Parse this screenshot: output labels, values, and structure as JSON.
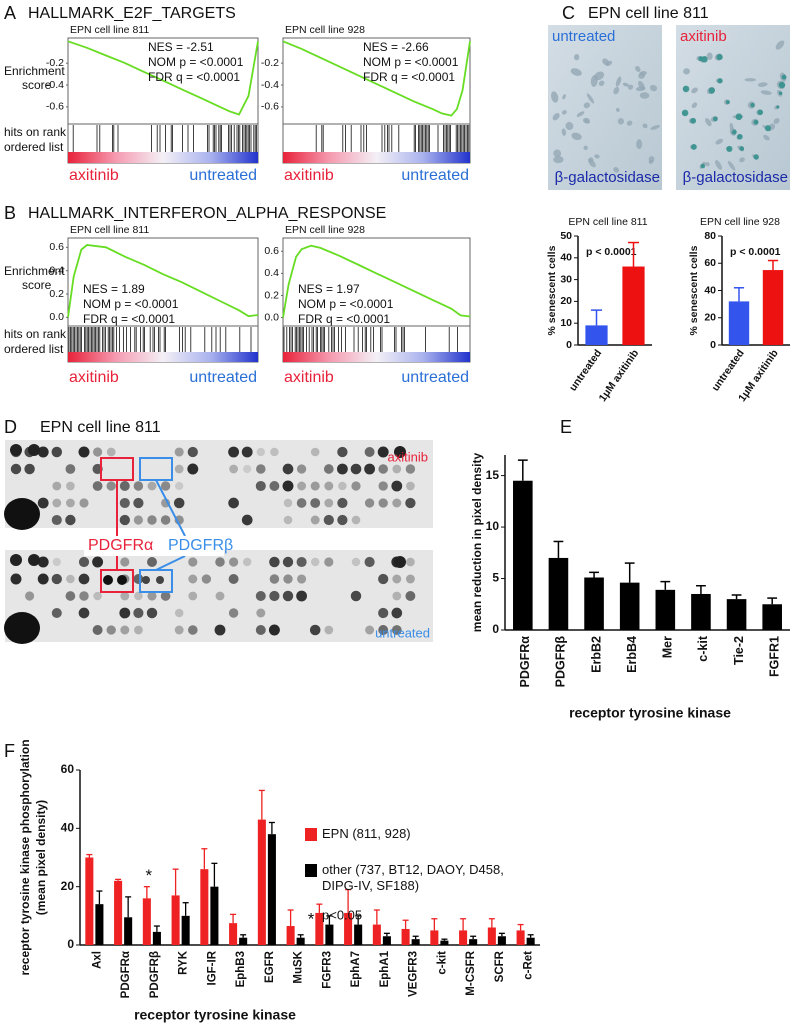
{
  "panel_labels": [
    "A",
    "B",
    "C",
    "D",
    "E",
    "F"
  ],
  "chart_data": [
    {
      "type": "gsea",
      "title": "HALLMARK_E2F_TARGETS",
      "y_label": [
        "Enrichment",
        "score"
      ],
      "hits_label": [
        "hits on rank",
        "ordered list"
      ],
      "left_label": "axitinib",
      "right_label": "untreated",
      "color": "#66dd22",
      "plots": [
        {
          "subtitle": "EPN cell line 811",
          "x": [
            0,
            0.1,
            0.2,
            0.3,
            0.4,
            0.5,
            0.6,
            0.7,
            0.8,
            0.85,
            0.9,
            0.95,
            1.0
          ],
          "values": [
            0,
            -0.06,
            -0.13,
            -0.2,
            -0.28,
            -0.36,
            -0.44,
            -0.52,
            -0.6,
            -0.64,
            -0.67,
            -0.5,
            0
          ],
          "ylim": [
            -0.72,
            0.03
          ],
          "yticks": [
            -0.2,
            -0.4,
            -0.6
          ],
          "annotations": [
            "NES = -2.51",
            "NOM p = <0.0001",
            "FDR q = <0.0001"
          ]
        },
        {
          "subtitle": "EPN cell line 928",
          "x": [
            0,
            0.1,
            0.2,
            0.3,
            0.4,
            0.5,
            0.6,
            0.7,
            0.8,
            0.85,
            0.9,
            0.93,
            0.96,
            1.0
          ],
          "values": [
            0,
            -0.07,
            -0.15,
            -0.23,
            -0.31,
            -0.39,
            -0.47,
            -0.55,
            -0.62,
            -0.66,
            -0.68,
            -0.62,
            -0.45,
            0
          ],
          "ylim": [
            -0.72,
            0.03
          ],
          "yticks": [
            -0.2,
            -0.4,
            -0.6
          ],
          "annotations": [
            "NES = -2.66",
            "NOM p = <0.0001",
            "FDR q = <0.0001"
          ]
        }
      ]
    },
    {
      "type": "gsea",
      "title": "HALLMARK_INTERFERON_ALPHA_RESPONSE",
      "y_label": [
        "Enrichment",
        "score"
      ],
      "hits_label": [
        "hits on rank",
        "ordered list"
      ],
      "left_label": "axitinib",
      "right_label": "untreated",
      "color": "#66dd22",
      "plots": [
        {
          "subtitle": "EPN cell line 811",
          "x": [
            0,
            0.03,
            0.07,
            0.1,
            0.2,
            0.3,
            0.4,
            0.5,
            0.6,
            0.7,
            0.8,
            0.9,
            0.95,
            1.0
          ],
          "values": [
            0,
            0.35,
            0.58,
            0.62,
            0.6,
            0.52,
            0.45,
            0.37,
            0.3,
            0.22,
            0.14,
            0.06,
            0.01,
            0.02
          ],
          "ylim": [
            -0.04,
            0.68
          ],
          "yticks": [
            0.6,
            0.4,
            0.2,
            {
              "value": 0,
              "label": "0.0"
            }
          ],
          "annotations": [
            "NES = 1.89",
            "NOM p = <0.0001",
            "FDR q = <0.0001"
          ]
        },
        {
          "subtitle": "EPN cell line 928",
          "x": [
            0,
            0.03,
            0.07,
            0.1,
            0.15,
            0.2,
            0.3,
            0.4,
            0.5,
            0.6,
            0.7,
            0.8,
            0.9,
            0.95,
            1.0
          ],
          "values": [
            0,
            0.3,
            0.55,
            0.62,
            0.65,
            0.63,
            0.56,
            0.48,
            0.4,
            0.32,
            0.24,
            0.16,
            0.08,
            0.02,
            0.01
          ],
          "ylim": [
            -0.04,
            0.72
          ],
          "yticks": [
            0.6,
            0.4,
            0.2,
            {
              "value": 0,
              "label": "0.0"
            }
          ],
          "annotations": [
            "NES = 1.97",
            "NOM p = <0.0001",
            "FDR q = <0.0001"
          ]
        }
      ]
    },
    {
      "type": "bar",
      "title": "EPN cell line 811",
      "y_label": "% senescent cells",
      "categories": [
        "untreated",
        "1μM axitinib"
      ],
      "values": [
        9,
        36
      ],
      "errors": [
        7,
        11
      ],
      "colors": [
        "#3355ee",
        "#ee1111"
      ],
      "annotation": "p < 0.0001",
      "ylim": [
        0,
        50
      ],
      "yticks": [
        0,
        10,
        20,
        30,
        40,
        50
      ]
    },
    {
      "type": "bar",
      "title": "EPN cell line 928",
      "y_label": "% senescent cells",
      "categories": [
        "untreated",
        "1μM axitinib"
      ],
      "values": [
        32,
        55
      ],
      "errors": [
        10,
        7
      ],
      "colors": [
        "#3355ee",
        "#ee1111"
      ],
      "annotation": "p < 0.0001",
      "ylim": [
        0,
        80
      ],
      "yticks": [
        0,
        20,
        40,
        60,
        80
      ]
    },
    {
      "type": "bar",
      "y_label": "mean reduction in pixel density",
      "x_label": "receptor tyrosine kinase",
      "categories": [
        "PDGFRα",
        "PDGFRβ",
        "ErbB2",
        "ErbB4",
        "Mer",
        "c-kit",
        "Tie-2",
        "FGFR1"
      ],
      "values": [
        14.5,
        7,
        5.1,
        4.6,
        3.9,
        3.5,
        3.0,
        2.5
      ],
      "errors": [
        2,
        1.6,
        0.5,
        1.9,
        0.8,
        0.8,
        0.4,
        0.6
      ],
      "color": "#000000",
      "ylim": [
        0,
        17
      ],
      "yticks": [
        0,
        5,
        10,
        15
      ]
    },
    {
      "type": "grouped_bar",
      "y_label": [
        "receptor tyrosine kinase phosphorylation",
        "(mean pixel density)"
      ],
      "x_label": "receptor tyrosine kinase",
      "categories": [
        "Axl",
        "PDGFRα",
        "PDGFRβ",
        "RYK",
        "IGF-IR",
        "EphB3",
        "EGFR",
        "MuSK",
        "FGFR3",
        "EphA7",
        "EphA1",
        "VEGFR3",
        "c-kit",
        "M-CSFR",
        "SCFR",
        "c-Ret"
      ],
      "series": [
        {
          "name": "EPN (811, 928)",
          "color": "#ee2222",
          "values": [
            30,
            22,
            16,
            17,
            26,
            7.5,
            43,
            6.5,
            11,
            11,
            7,
            5.5,
            5,
            5,
            6,
            5
          ],
          "errors": [
            1,
            0.5,
            4,
            9,
            7,
            3,
            10,
            5.5,
            3,
            8,
            5,
            3,
            4,
            4,
            3,
            2
          ]
        },
        {
          "name": "other (737, BT12, DAOY, D458, DIPG-IV, SF188)",
          "color": "#000000",
          "values": [
            14,
            9.5,
            4.5,
            10,
            20,
            2.5,
            38,
            2.5,
            7,
            7,
            3,
            2,
            1.5,
            2,
            3,
            2.5
          ],
          "errors": [
            4.5,
            7,
            2,
            4.5,
            8,
            1,
            4,
            1,
            3,
            3,
            1,
            1,
            0.5,
            1,
            1,
            1
          ]
        }
      ],
      "star_labels": [
        null,
        null,
        "*",
        null,
        null,
        null,
        null,
        null,
        null,
        null,
        null,
        null,
        null,
        null,
        null,
        null
      ],
      "significance_legend": {
        "symbol": "*",
        "label": "p<0.05"
      },
      "ylim": [
        0,
        60
      ],
      "yticks": [
        0,
        20,
        40,
        60
      ]
    }
  ],
  "panel_C_images": {
    "title": "EPN cell line 811",
    "labels": [
      {
        "condition": "untreated",
        "stain": "β-galactosidase"
      },
      {
        "condition": "axitinib",
        "stain": "β-galactosidase"
      }
    ]
  },
  "panel_D_blot": {
    "title": "EPN cell line 811",
    "top_label": "axitinib",
    "bottom_label": "untreated",
    "callouts": [
      "PDGFRα",
      "PDGFRβ"
    ]
  }
}
